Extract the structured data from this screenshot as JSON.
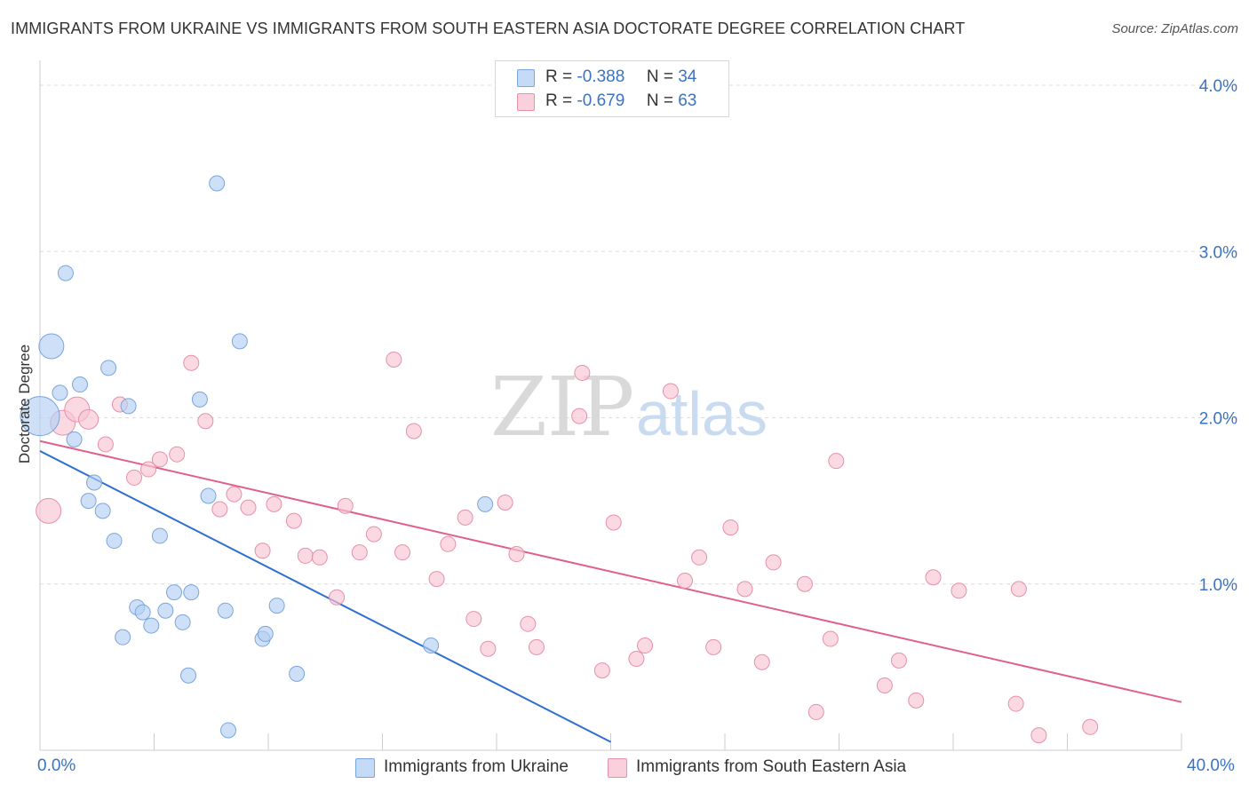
{
  "title": "IMMIGRANTS FROM UKRAINE VS IMMIGRANTS FROM SOUTH EASTERN ASIA DOCTORATE DEGREE CORRELATION CHART",
  "source": "Source: ZipAtlas.com",
  "watermark": {
    "zip": "ZIP",
    "atlas": "atlas"
  },
  "legend": {
    "r_label": "R =",
    "n_label": "N =",
    "entries": [
      {
        "r": "-0.388",
        "n": "34",
        "color": "#a9c8f0"
      },
      {
        "r": "-0.679",
        "n": "63",
        "color": "#f5b8ca"
      }
    ]
  },
  "colors": {
    "blue_fill": "#b3cff2",
    "blue_stroke": "#7aa5dc",
    "blue_line": "#2f6fd0",
    "pink_fill": "#f8c4d3",
    "pink_stroke": "#e690aa",
    "pink_line": "#e0608a",
    "axis_text": "#3a73c4"
  },
  "chart_data": {
    "type": "scatter",
    "title": "IMMIGRANTS FROM UKRAINE VS IMMIGRANTS FROM SOUTH EASTERN ASIA DOCTORATE DEGREE CORRELATION CHART",
    "xlabel": "",
    "ylabel": "Doctorate Degree",
    "xlim": [
      0,
      40
    ],
    "ylim": [
      0,
      4.1
    ],
    "x_tick_labels": [
      "0.0%",
      "40.0%"
    ],
    "y_ticks": [
      {
        "value": 1.0,
        "label": "1.0%"
      },
      {
        "value": 2.0,
        "label": "2.0%"
      },
      {
        "value": 3.0,
        "label": "3.0%"
      },
      {
        "value": 4.0,
        "label": "4.0%"
      }
    ],
    "series": [
      {
        "name": "Immigrants from Ukraine",
        "r": -0.388,
        "n": 34,
        "trend": {
          "x": [
            0.0,
            20.0
          ],
          "y": [
            1.8,
            0.05
          ]
        },
        "points": [
          {
            "x": 0.0,
            "y": 2.01,
            "s": 3
          },
          {
            "x": 0.4,
            "y": 2.43,
            "s": 2
          },
          {
            "x": 0.9,
            "y": 2.87,
            "s": 1
          },
          {
            "x": 0.7,
            "y": 2.15,
            "s": 1
          },
          {
            "x": 1.4,
            "y": 2.2,
            "s": 1
          },
          {
            "x": 1.2,
            "y": 1.87,
            "s": 1
          },
          {
            "x": 2.4,
            "y": 2.3,
            "s": 1
          },
          {
            "x": 3.1,
            "y": 2.07,
            "s": 1
          },
          {
            "x": 5.6,
            "y": 2.11,
            "s": 1
          },
          {
            "x": 6.2,
            "y": 3.41,
            "s": 1
          },
          {
            "x": 7.0,
            "y": 2.46,
            "s": 1
          },
          {
            "x": 1.9,
            "y": 1.61,
            "s": 1
          },
          {
            "x": 1.7,
            "y": 1.5,
            "s": 1
          },
          {
            "x": 2.2,
            "y": 1.44,
            "s": 1
          },
          {
            "x": 2.6,
            "y": 1.26,
            "s": 1
          },
          {
            "x": 4.2,
            "y": 1.29,
            "s": 1
          },
          {
            "x": 5.9,
            "y": 1.53,
            "s": 1
          },
          {
            "x": 15.6,
            "y": 1.48,
            "s": 1
          },
          {
            "x": 4.7,
            "y": 0.95,
            "s": 1
          },
          {
            "x": 5.3,
            "y": 0.95,
            "s": 1
          },
          {
            "x": 3.4,
            "y": 0.86,
            "s": 1
          },
          {
            "x": 3.6,
            "y": 0.83,
            "s": 1
          },
          {
            "x": 4.4,
            "y": 0.84,
            "s": 1
          },
          {
            "x": 6.5,
            "y": 0.84,
            "s": 1
          },
          {
            "x": 8.3,
            "y": 0.87,
            "s": 1
          },
          {
            "x": 3.9,
            "y": 0.75,
            "s": 1
          },
          {
            "x": 5.0,
            "y": 0.77,
            "s": 1
          },
          {
            "x": 2.9,
            "y": 0.68,
            "s": 1
          },
          {
            "x": 7.8,
            "y": 0.67,
            "s": 1
          },
          {
            "x": 7.9,
            "y": 0.7,
            "s": 1
          },
          {
            "x": 13.7,
            "y": 0.63,
            "s": 1
          },
          {
            "x": 5.2,
            "y": 0.45,
            "s": 1
          },
          {
            "x": 9.0,
            "y": 0.46,
            "s": 1
          },
          {
            "x": 6.6,
            "y": 0.12,
            "s": 1
          }
        ]
      },
      {
        "name": "Immigrants from South Eastern Asia",
        "r": -0.679,
        "n": 63,
        "trend": {
          "x": [
            0.0,
            40.0
          ],
          "y": [
            1.86,
            0.29
          ]
        },
        "points": [
          {
            "x": 0.3,
            "y": 1.44,
            "s": 2
          },
          {
            "x": 0.8,
            "y": 1.97,
            "s": 2
          },
          {
            "x": 1.3,
            "y": 2.05,
            "s": 2
          },
          {
            "x": 1.7,
            "y": 1.99,
            "s": 1.5
          },
          {
            "x": 2.3,
            "y": 1.84,
            "s": 1
          },
          {
            "x": 2.8,
            "y": 2.08,
            "s": 1
          },
          {
            "x": 3.3,
            "y": 1.64,
            "s": 1
          },
          {
            "x": 3.8,
            "y": 1.69,
            "s": 1
          },
          {
            "x": 4.2,
            "y": 1.75,
            "s": 1
          },
          {
            "x": 4.8,
            "y": 1.78,
            "s": 1
          },
          {
            "x": 5.3,
            "y": 2.33,
            "s": 1
          },
          {
            "x": 5.8,
            "y": 1.98,
            "s": 1
          },
          {
            "x": 6.3,
            "y": 1.45,
            "s": 1
          },
          {
            "x": 6.8,
            "y": 1.54,
            "s": 1
          },
          {
            "x": 7.3,
            "y": 1.46,
            "s": 1
          },
          {
            "x": 8.2,
            "y": 1.48,
            "s": 1
          },
          {
            "x": 7.8,
            "y": 1.2,
            "s": 1
          },
          {
            "x": 8.9,
            "y": 1.38,
            "s": 1
          },
          {
            "x": 9.3,
            "y": 1.17,
            "s": 1
          },
          {
            "x": 9.8,
            "y": 1.16,
            "s": 1
          },
          {
            "x": 10.4,
            "y": 0.92,
            "s": 1
          },
          {
            "x": 10.7,
            "y": 1.47,
            "s": 1
          },
          {
            "x": 11.2,
            "y": 1.19,
            "s": 1
          },
          {
            "x": 11.7,
            "y": 1.3,
            "s": 1
          },
          {
            "x": 12.4,
            "y": 2.35,
            "s": 1
          },
          {
            "x": 12.7,
            "y": 1.19,
            "s": 1
          },
          {
            "x": 13.1,
            "y": 1.92,
            "s": 1
          },
          {
            "x": 13.9,
            "y": 1.03,
            "s": 1
          },
          {
            "x": 14.3,
            "y": 1.24,
            "s": 1
          },
          {
            "x": 14.9,
            "y": 1.4,
            "s": 1
          },
          {
            "x": 15.2,
            "y": 0.79,
            "s": 1
          },
          {
            "x": 15.7,
            "y": 0.61,
            "s": 1
          },
          {
            "x": 16.3,
            "y": 1.49,
            "s": 1
          },
          {
            "x": 16.7,
            "y": 1.18,
            "s": 1
          },
          {
            "x": 17.1,
            "y": 0.76,
            "s": 1
          },
          {
            "x": 17.4,
            "y": 0.62,
            "s": 1
          },
          {
            "x": 18.9,
            "y": 2.01,
            "s": 1
          },
          {
            "x": 19.0,
            "y": 2.27,
            "s": 1
          },
          {
            "x": 19.7,
            "y": 0.48,
            "s": 1
          },
          {
            "x": 20.1,
            "y": 1.37,
            "s": 1
          },
          {
            "x": 20.9,
            "y": 0.55,
            "s": 1
          },
          {
            "x": 21.2,
            "y": 0.63,
            "s": 1
          },
          {
            "x": 22.1,
            "y": 2.16,
            "s": 1
          },
          {
            "x": 22.6,
            "y": 1.02,
            "s": 1
          },
          {
            "x": 23.1,
            "y": 1.16,
            "s": 1
          },
          {
            "x": 23.6,
            "y": 0.62,
            "s": 1
          },
          {
            "x": 24.2,
            "y": 1.34,
            "s": 1
          },
          {
            "x": 24.7,
            "y": 0.97,
            "s": 1
          },
          {
            "x": 25.3,
            "y": 0.53,
            "s": 1
          },
          {
            "x": 25.7,
            "y": 1.13,
            "s": 1
          },
          {
            "x": 26.8,
            "y": 1.0,
            "s": 1
          },
          {
            "x": 27.2,
            "y": 0.23,
            "s": 1
          },
          {
            "x": 27.7,
            "y": 0.67,
            "s": 1
          },
          {
            "x": 27.9,
            "y": 1.74,
            "s": 1
          },
          {
            "x": 29.6,
            "y": 0.39,
            "s": 1
          },
          {
            "x": 30.1,
            "y": 0.54,
            "s": 1
          },
          {
            "x": 30.7,
            "y": 0.3,
            "s": 1
          },
          {
            "x": 31.3,
            "y": 1.04,
            "s": 1
          },
          {
            "x": 32.2,
            "y": 0.96,
            "s": 1
          },
          {
            "x": 34.2,
            "y": 0.28,
            "s": 1
          },
          {
            "x": 34.3,
            "y": 0.97,
            "s": 1
          },
          {
            "x": 35.0,
            "y": 0.09,
            "s": 1
          },
          {
            "x": 36.8,
            "y": 0.14,
            "s": 1
          }
        ]
      }
    ]
  }
}
